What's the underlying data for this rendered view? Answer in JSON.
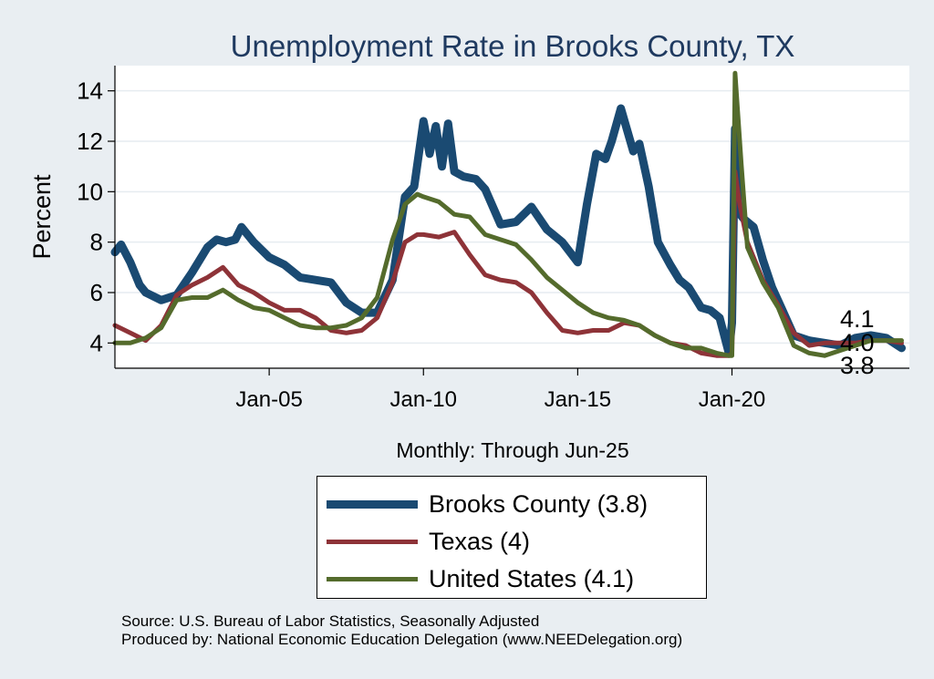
{
  "chart_data": {
    "type": "line",
    "title": "Unemployment Rate in Brooks  County, TX",
    "ylabel": "Percent",
    "xlabel": "Monthly: Through Jun-25",
    "ylim": [
      3.0,
      15.0
    ],
    "xlim": [
      2000.0,
      2025.75
    ],
    "yticks": [
      4,
      6,
      8,
      10,
      12,
      14
    ],
    "xticks": [
      {
        "x": 2005,
        "label": "Jan-05"
      },
      {
        "x": 2010,
        "label": "Jan-10"
      },
      {
        "x": 2015,
        "label": "Jan-15"
      },
      {
        "x": 2020,
        "label": "Jan-20"
      }
    ],
    "grid": true,
    "legend_position": "bottom",
    "end_labels": [
      "4.1",
      "4.0",
      "3.8"
    ],
    "series": [
      {
        "name": "Brooks  County (3.8)",
        "color": "#1a4a72",
        "x": [
          2000.0,
          2000.2,
          2000.5,
          2000.8,
          2001.0,
          2001.5,
          2002.0,
          2002.5,
          2003.0,
          2003.3,
          2003.6,
          2003.9,
          2004.1,
          2004.5,
          2005.0,
          2005.5,
          2006.0,
          2006.5,
          2007.0,
          2007.5,
          2008.0,
          2008.5,
          2009.0,
          2009.4,
          2009.7,
          2010.0,
          2010.2,
          2010.4,
          2010.6,
          2010.8,
          2011.0,
          2011.3,
          2011.7,
          2012.0,
          2012.5,
          2013.0,
          2013.5,
          2014.0,
          2014.5,
          2015.0,
          2015.3,
          2015.6,
          2015.9,
          2016.1,
          2016.4,
          2016.8,
          2017.0,
          2017.3,
          2017.6,
          2018.0,
          2018.3,
          2018.6,
          2019.0,
          2019.3,
          2019.6,
          2019.9,
          2020.0,
          2020.1,
          2020.2,
          2020.4,
          2020.7,
          2021.0,
          2021.3,
          2021.6,
          2022.0,
          2022.5,
          2023.0,
          2023.5,
          2024.0,
          2024.5,
          2025.0,
          2025.5
        ],
        "values": [
          7.6,
          7.9,
          7.2,
          6.3,
          6.0,
          5.7,
          5.9,
          6.8,
          7.8,
          8.1,
          8.0,
          8.1,
          8.6,
          8.0,
          7.4,
          7.1,
          6.6,
          6.5,
          6.4,
          5.6,
          5.2,
          5.2,
          6.5,
          9.8,
          10.2,
          12.8,
          11.5,
          12.6,
          11.0,
          12.7,
          10.8,
          10.6,
          10.5,
          10.1,
          8.7,
          8.8,
          9.4,
          8.5,
          8.0,
          7.2,
          9.5,
          11.5,
          11.3,
          12.0,
          13.3,
          11.6,
          11.9,
          10.2,
          8.0,
          7.1,
          6.5,
          6.2,
          5.4,
          5.3,
          5.0,
          3.6,
          4.8,
          12.5,
          9.2,
          8.9,
          8.6,
          7.3,
          6.2,
          5.4,
          4.3,
          4.1,
          4.0,
          3.9,
          4.2,
          4.3,
          4.2,
          3.8
        ]
      },
      {
        "name": "Texas (4)",
        "color": "#8e3338",
        "x": [
          2000.0,
          2000.5,
          2001.0,
          2001.5,
          2002.0,
          2002.5,
          2003.0,
          2003.5,
          2004.0,
          2004.5,
          2005.0,
          2005.5,
          2006.0,
          2006.5,
          2007.0,
          2007.5,
          2008.0,
          2008.5,
          2009.0,
          2009.4,
          2009.8,
          2010.0,
          2010.5,
          2011.0,
          2011.5,
          2012.0,
          2012.5,
          2013.0,
          2013.5,
          2014.0,
          2014.5,
          2015.0,
          2015.5,
          2016.0,
          2016.5,
          2017.0,
          2017.5,
          2018.0,
          2018.5,
          2019.0,
          2019.5,
          2019.9,
          2020.0,
          2020.1,
          2020.25,
          2020.5,
          2021.0,
          2021.5,
          2022.0,
          2022.5,
          2023.0,
          2023.5,
          2024.0,
          2024.5,
          2025.0,
          2025.5
        ],
        "values": [
          4.7,
          4.4,
          4.1,
          4.7,
          5.9,
          6.3,
          6.6,
          7.0,
          6.3,
          6.0,
          5.6,
          5.3,
          5.3,
          5.0,
          4.5,
          4.4,
          4.5,
          5.0,
          6.4,
          8.0,
          8.3,
          8.3,
          8.2,
          8.4,
          7.5,
          6.7,
          6.5,
          6.4,
          6.0,
          5.2,
          4.5,
          4.4,
          4.5,
          4.5,
          4.8,
          4.7,
          4.3,
          4.0,
          3.9,
          3.6,
          3.5,
          3.5,
          3.6,
          10.8,
          9.5,
          8.0,
          6.5,
          5.5,
          4.4,
          3.9,
          4.0,
          4.0,
          4.0,
          4.1,
          4.1,
          4.0
        ]
      },
      {
        "name": "United States (4.1)",
        "color": "#546b2c",
        "x": [
          2000.0,
          2000.5,
          2001.0,
          2001.5,
          2002.0,
          2002.5,
          2003.0,
          2003.5,
          2004.0,
          2004.5,
          2005.0,
          2005.5,
          2006.0,
          2006.5,
          2007.0,
          2007.5,
          2008.0,
          2008.5,
          2009.0,
          2009.4,
          2009.8,
          2010.0,
          2010.5,
          2011.0,
          2011.5,
          2012.0,
          2012.5,
          2013.0,
          2013.5,
          2014.0,
          2014.5,
          2015.0,
          2015.5,
          2016.0,
          2016.5,
          2017.0,
          2017.5,
          2018.0,
          2018.5,
          2019.0,
          2019.5,
          2019.9,
          2020.0,
          2020.1,
          2020.3,
          2020.5,
          2021.0,
          2021.5,
          2022.0,
          2022.5,
          2023.0,
          2023.5,
          2024.0,
          2024.5,
          2025.0,
          2025.5
        ],
        "values": [
          4.0,
          4.0,
          4.2,
          4.6,
          5.7,
          5.8,
          5.8,
          6.1,
          5.7,
          5.4,
          5.3,
          5.0,
          4.7,
          4.6,
          4.6,
          4.7,
          5.0,
          5.8,
          8.1,
          9.5,
          9.9,
          9.8,
          9.6,
          9.1,
          9.0,
          8.3,
          8.1,
          7.9,
          7.3,
          6.6,
          6.1,
          5.6,
          5.2,
          5.0,
          4.9,
          4.7,
          4.3,
          4.0,
          3.8,
          3.8,
          3.6,
          3.5,
          3.5,
          14.7,
          11.1,
          7.8,
          6.4,
          5.4,
          3.9,
          3.6,
          3.5,
          3.7,
          3.9,
          4.1,
          4.1,
          4.1
        ]
      }
    ]
  },
  "source": {
    "line1": "Source: U.S. Bureau of Labor Statistics, Seasonally Adjusted",
    "line2": "Produced by: National Economic Education Delegation (www.NEEDelegation.org)"
  }
}
